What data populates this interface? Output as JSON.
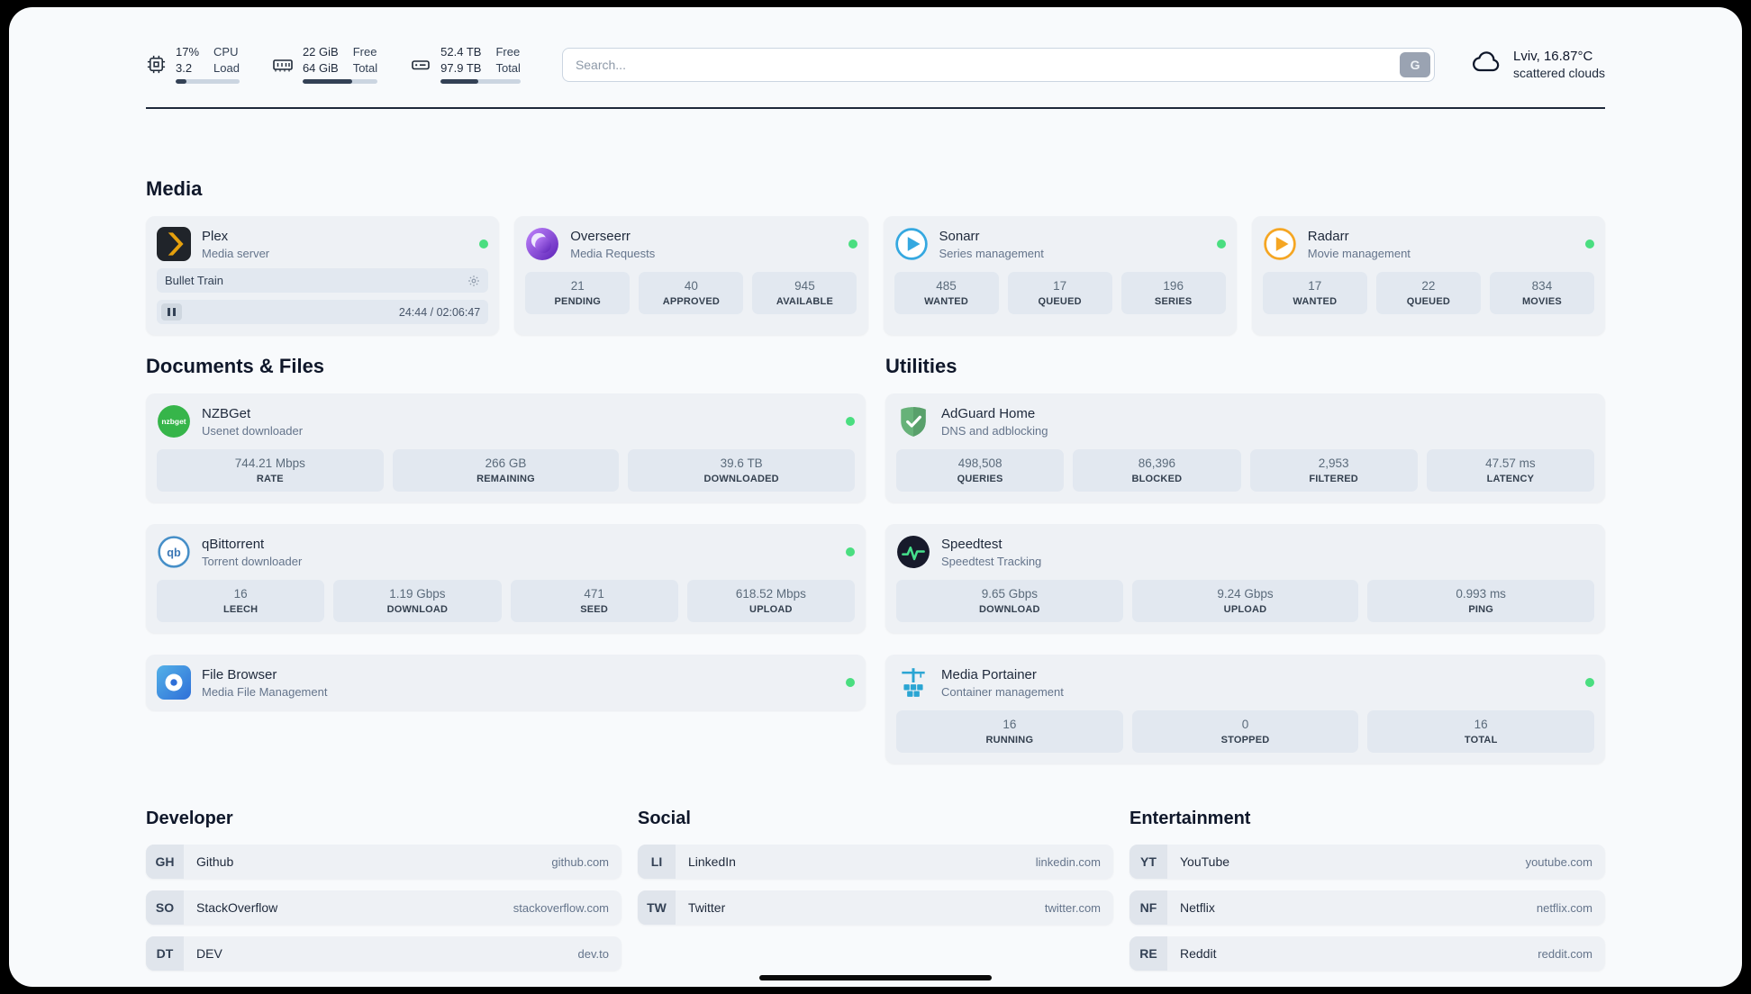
{
  "topbar": {
    "cpu": {
      "value1": "17%",
      "value2": "3.2",
      "label1": "CPU",
      "label2": "Load",
      "percent": 17
    },
    "memory": {
      "value1": "22 GiB",
      "value2": "64 GiB",
      "label1": "Free",
      "label2": "Total",
      "percent": 66
    },
    "disk": {
      "value1": "52.4 TB",
      "value2": "97.9 TB",
      "label1": "Free",
      "label2": "Total",
      "percent": 47
    },
    "search": {
      "placeholder": "Search...",
      "button_label": "G"
    },
    "weather": {
      "location": "Lviv, 16.87°C",
      "condition": "scattered clouds"
    }
  },
  "media": {
    "title": "Media",
    "plex": {
      "name": "Plex",
      "desc": "Media server",
      "now_playing": "Bullet Train",
      "time": "24:44 / 02:06:47"
    },
    "overseerr": {
      "name": "Overseerr",
      "desc": "Media Requests",
      "stats": [
        {
          "value": "21",
          "label": "PENDING"
        },
        {
          "value": "40",
          "label": "APPROVED"
        },
        {
          "value": "945",
          "label": "AVAILABLE"
        }
      ]
    },
    "sonarr": {
      "name": "Sonarr",
      "desc": "Series management",
      "stats": [
        {
          "value": "485",
          "label": "WANTED"
        },
        {
          "value": "17",
          "label": "QUEUED"
        },
        {
          "value": "196",
          "label": "SERIES"
        }
      ]
    },
    "radarr": {
      "name": "Radarr",
      "desc": "Movie management",
      "stats": [
        {
          "value": "17",
          "label": "WANTED"
        },
        {
          "value": "22",
          "label": "QUEUED"
        },
        {
          "value": "834",
          "label": "MOVIES"
        }
      ]
    }
  },
  "documents": {
    "title": "Documents & Files",
    "nzbget": {
      "name": "NZBGet",
      "desc": "Usenet downloader",
      "stats": [
        {
          "value": "744.21 Mbps",
          "label": "RATE"
        },
        {
          "value": "266 GB",
          "label": "REMAINING"
        },
        {
          "value": "39.6 TB",
          "label": "DOWNLOADED"
        }
      ]
    },
    "qbittorrent": {
      "name": "qBittorrent",
      "desc": "Torrent downloader",
      "stats": [
        {
          "value": "16",
          "label": "LEECH"
        },
        {
          "value": "1.19 Gbps",
          "label": "DOWNLOAD"
        },
        {
          "value": "471",
          "label": "SEED"
        },
        {
          "value": "618.52 Mbps",
          "label": "UPLOAD"
        }
      ]
    },
    "filebrowser": {
      "name": "File Browser",
      "desc": "Media File Management"
    }
  },
  "utilities": {
    "title": "Utilities",
    "adguard": {
      "name": "AdGuard Home",
      "desc": "DNS and adblocking",
      "stats": [
        {
          "value": "498,508",
          "label": "QUERIES"
        },
        {
          "value": "86,396",
          "label": "BLOCKED"
        },
        {
          "value": "2,953",
          "label": "FILTERED"
        },
        {
          "value": "47.57 ms",
          "label": "LATENCY"
        }
      ]
    },
    "speedtest": {
      "name": "Speedtest",
      "desc": "Speedtest Tracking",
      "stats": [
        {
          "value": "9.65 Gbps",
          "label": "DOWNLOAD"
        },
        {
          "value": "9.24 Gbps",
          "label": "UPLOAD"
        },
        {
          "value": "0.993 ms",
          "label": "PING"
        }
      ]
    },
    "portainer": {
      "name": "Media Portainer",
      "desc": "Container management",
      "stats": [
        {
          "value": "16",
          "label": "RUNNING"
        },
        {
          "value": "0",
          "label": "STOPPED"
        },
        {
          "value": "16",
          "label": "TOTAL"
        }
      ]
    }
  },
  "bookmarks": {
    "developer": {
      "title": "Developer",
      "items": [
        {
          "abbr": "GH",
          "name": "Github",
          "domain": "github.com"
        },
        {
          "abbr": "SO",
          "name": "StackOverflow",
          "domain": "stackoverflow.com"
        },
        {
          "abbr": "DT",
          "name": "DEV",
          "domain": "dev.to"
        }
      ]
    },
    "social": {
      "title": "Social",
      "items": [
        {
          "abbr": "LI",
          "name": "LinkedIn",
          "domain": "linkedin.com"
        },
        {
          "abbr": "TW",
          "name": "Twitter",
          "domain": "twitter.com"
        }
      ]
    },
    "entertainment": {
      "title": "Entertainment",
      "items": [
        {
          "abbr": "YT",
          "name": "YouTube",
          "domain": "youtube.com"
        },
        {
          "abbr": "NF",
          "name": "Netflix",
          "domain": "netflix.com"
        },
        {
          "abbr": "RE",
          "name": "Reddit",
          "domain": "reddit.com"
        }
      ]
    }
  }
}
